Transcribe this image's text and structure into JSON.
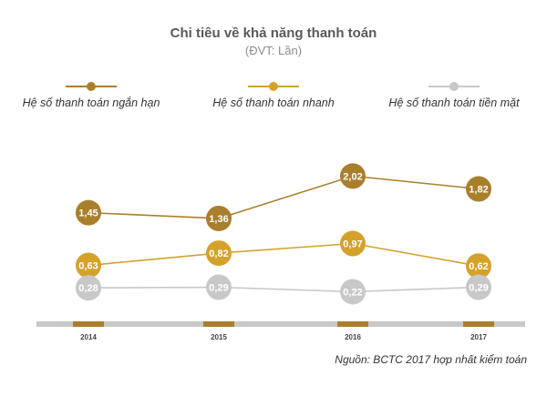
{
  "chart_data": {
    "type": "line",
    "title": "Chi tiêu về khả năng thanh toán",
    "subtitle": "(ĐVT: Lần)",
    "categories": [
      "2014",
      "2015",
      "2016",
      "2017"
    ],
    "series": [
      {
        "name": "Hệ số thanh toán ngắn hạn",
        "color": "#a97f2c",
        "values": [
          1.45,
          1.36,
          2.02,
          1.82
        ],
        "labels": [
          "1,45",
          "1,36",
          "2,02",
          "1,82"
        ]
      },
      {
        "name": "Hệ số thanh toán nhanh",
        "color": "#d4a22b",
        "values": [
          0.63,
          0.82,
          0.97,
          0.62
        ],
        "labels": [
          "0,63",
          "0,82",
          "0,97",
          "0,62"
        ]
      },
      {
        "name": "Hệ số thanh toán tiền mặt",
        "color": "#c8c8c8",
        "values": [
          0.28,
          0.29,
          0.22,
          0.29
        ],
        "labels": [
          "0,28",
          "0,29",
          "0,22",
          "0,29"
        ]
      }
    ],
    "xlabel": "",
    "ylabel": "",
    "grid": false,
    "legend": "top"
  },
  "source": "Nguồn: BCTC 2017 hợp nhất kiểm toán",
  "colors": {
    "axis": "#c8c8c8",
    "tick_mark": "#a97f2c",
    "tick_text": "#444444"
  }
}
